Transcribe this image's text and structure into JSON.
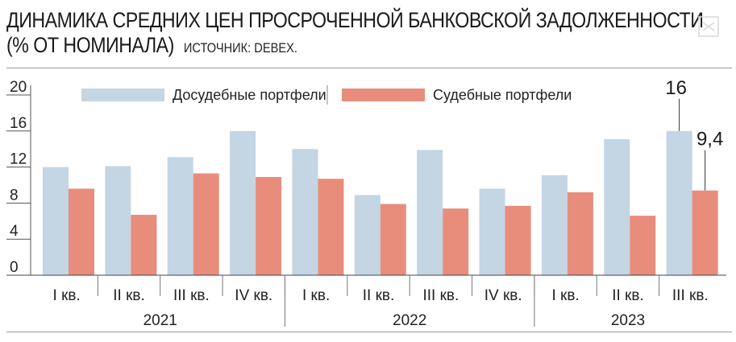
{
  "header": {
    "title_line1": "ДИНАМИКА СРЕДНИХ ЦЕН ПРОСРОЧЕННОЙ БАНКОВСКОЙ ЗАДОЛЖЕННОСТИ",
    "title_line2": "(% ОТ НОМИНАЛА)",
    "source": "ИСТОЧНИК: DEBEX."
  },
  "colors": {
    "series1": "#c4d5e4",
    "series2": "#e88d7c"
  },
  "chart_data": {
    "type": "bar",
    "categories": [
      "I кв.",
      "II кв.",
      "III кв.",
      "IV кв.",
      "I кв.",
      "II кв.",
      "III кв.",
      "IV кв.",
      "I кв.",
      "II кв.",
      "III кв."
    ],
    "years": [
      {
        "label": "2021",
        "quarters": 4
      },
      {
        "label": "2022",
        "quarters": 4
      },
      {
        "label": "2023",
        "quarters": 3
      }
    ],
    "series": [
      {
        "name": "Досудебные портфели",
        "values": [
          12.0,
          12.1,
          13.1,
          16.0,
          14.0,
          8.9,
          13.9,
          9.6,
          11.1,
          15.1,
          16.0
        ]
      },
      {
        "name": "Судебные портфели",
        "values": [
          9.6,
          6.7,
          11.3,
          10.9,
          10.7,
          7.9,
          7.4,
          7.7,
          9.2,
          6.6,
          9.4
        ]
      }
    ],
    "data_labels": [
      {
        "series": 0,
        "index": 10,
        "text": "16"
      },
      {
        "series": 1,
        "index": 10,
        "text": "9,4"
      }
    ],
    "yticks": [
      "0",
      "4",
      "8",
      "12",
      "16",
      "20"
    ],
    "ylim": [
      0,
      20
    ],
    "legend_position": "top"
  }
}
